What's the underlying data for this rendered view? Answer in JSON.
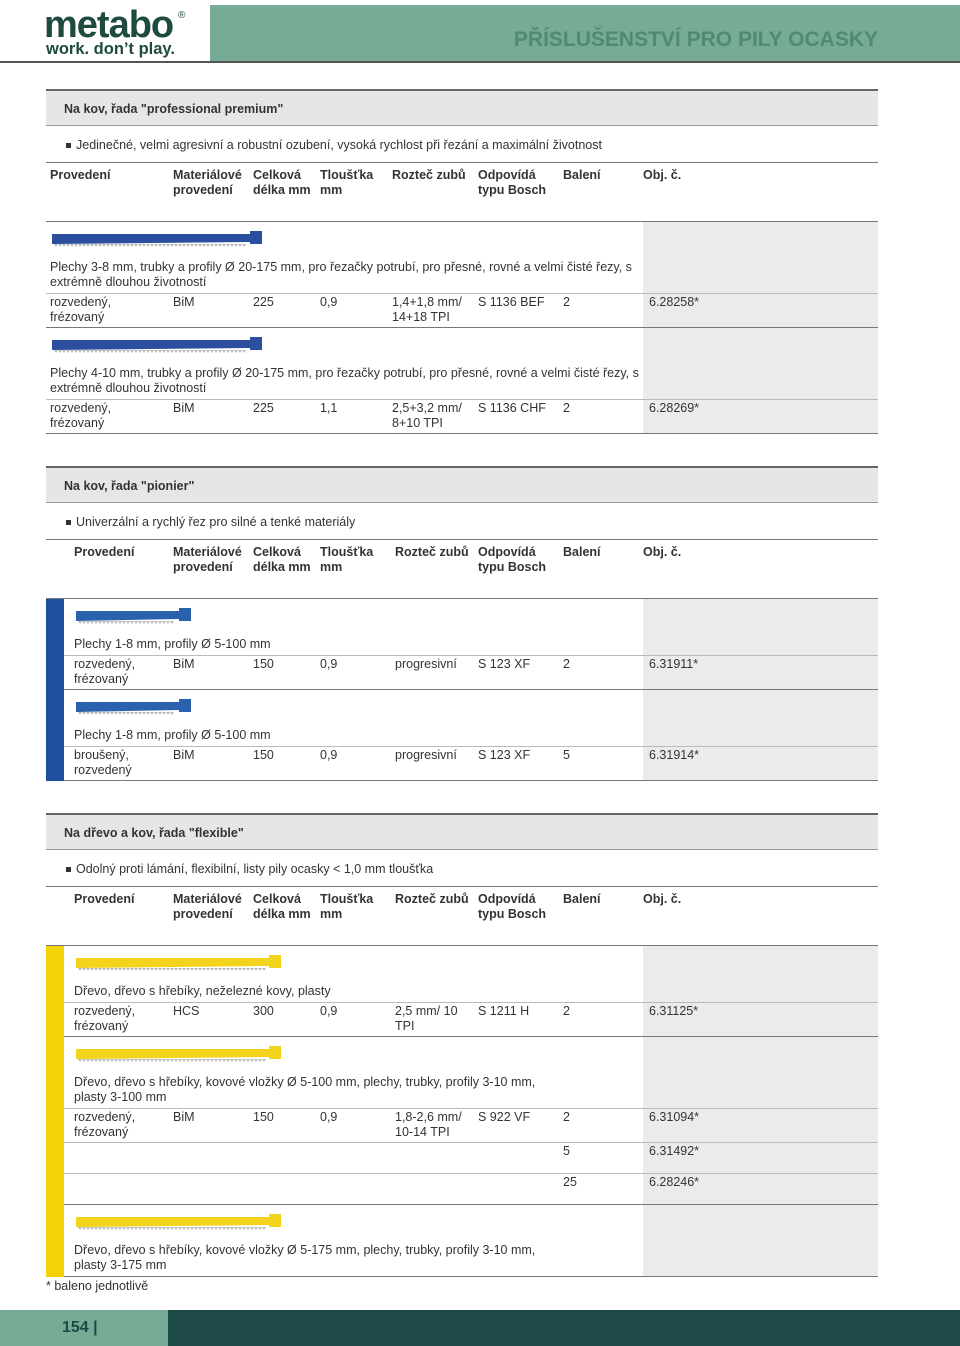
{
  "header": {
    "logo": "metabo",
    "mark": "®",
    "slogan": "work. don’t play.",
    "title": "PŘÍSLUŠENSTVÍ PRO PILY OCASKY"
  },
  "sections": [
    {
      "title": "Na kov, řada \"professional premium\"",
      "feature": "Jedinečné, velmi agresivní a robustní ozubení, vysoká rychlost při řezání a maximální životnost",
      "accent": null,
      "columns": [
        "Provedení",
        "Materiálové provedení",
        "Celková délka mm",
        "Tloušťka mm",
        "Rozteč zubů",
        "Odpovídá typu Bosch",
        "Balení",
        "Obj. č."
      ],
      "products": [
        {
          "blade_color": "#2b4f9e",
          "description": "Plechy 3-8 mm, trubky a profily Ø 20-175 mm, pro řezačky potrubí, pro přesné, rovné a velmi čisté řezy, s extrémně dlouhou životností",
          "rows": [
            {
              "provedeni": "rozvedený, frézovaný",
              "material": "BiM",
              "delka": "225",
              "tloustka": "0,9",
              "roztec": "1,4+1,8 mm/ 14+18 TPI",
              "bosch": "S 1136 BEF",
              "baleni": "2",
              "obj": "6.28258*"
            }
          ]
        },
        {
          "blade_color": "#2b4f9e",
          "description": "Plechy 4-10 mm, trubky a profily Ø 20-175 mm, pro řezačky potrubí, pro přesné, rovné a velmi čisté řezy, s extrémně dlouhou životností",
          "rows": [
            {
              "provedeni": "rozvedený, frézovaný",
              "material": "BiM",
              "delka": "225",
              "tloustka": "1,1",
              "roztec": "2,5+3,2 mm/ 8+10 TPI",
              "bosch": "S 1136 CHF",
              "baleni": "2",
              "obj": "6.28269*"
            }
          ]
        }
      ]
    },
    {
      "title": "Na kov, řada \"pionier\"",
      "feature": "Univerzální a rychlý řez pro silné a tenké materiály",
      "accent": "#1f4f9f",
      "columns": [
        "Provedení",
        "Materiálové provedení",
        "Celková délka mm",
        "Tloušťka mm",
        "Rozteč zubů",
        "Odpovídá typu Bosch",
        "Balení",
        "Obj. č."
      ],
      "products": [
        {
          "blade_color": "#2a62ad",
          "description": "Plechy 1-8 mm, profily Ø 5-100 mm",
          "rows": [
            {
              "provedeni": "rozvedený, frézovaný",
              "material": "BiM",
              "delka": "150",
              "tloustka": "0,9",
              "roztec": "progresivní",
              "bosch": "S 123 XF",
              "baleni": "2",
              "obj": "6.31911*"
            }
          ]
        },
        {
          "blade_color": "#2a62ad",
          "description": "Plechy 1-8 mm, profily Ø 5-100 mm",
          "rows": [
            {
              "provedeni": "broušený, rozvedený",
              "material": "BiM",
              "delka": "150",
              "tloustka": "0,9",
              "roztec": "progresivní",
              "bosch": "S 123 XF",
              "baleni": "5",
              "obj": "6.31914*"
            }
          ]
        }
      ]
    },
    {
      "title": "Na dřevo a kov, řada \"flexible\"",
      "feature": "Odolný proti lámání, flexibilní, listy pily ocasky < 1,0 mm tloušťka",
      "accent": "#f4d20a",
      "columns": [
        "Provedení",
        "Materiálové provedení",
        "Celková délka mm",
        "Tloušťka mm",
        "Rozteč zubů",
        "Odpovídá typu Bosch",
        "Balení",
        "Obj. č."
      ],
      "products": [
        {
          "blade_color": "#f3d31c",
          "description": "Dřevo, dřevo s hřebíky, neželezné kovy, plasty",
          "rows": [
            {
              "provedeni": "rozvedený, frézovaný",
              "material": "HCS",
              "delka": "300",
              "tloustka": "0,9",
              "roztec": "2,5 mm/ 10 TPI",
              "bosch": "S 1211 H",
              "baleni": "2",
              "obj": "6.31125*"
            }
          ]
        },
        {
          "blade_color": "#f3d31c",
          "description": "Dřevo, dřevo s hřebíky, kovové vložky Ø 5-100 mm, plechy, trubky, profily 3-10 mm, plasty 3-100 mm",
          "rows": [
            {
              "provedeni": "rozvedený, frézovaný",
              "material": "BiM",
              "delka": "150",
              "tloustka": "0,9",
              "roztec": "1,8-2,6 mm/ 10-14 TPI",
              "bosch": "S 922 VF",
              "baleni": "2",
              "obj": "6.31094*"
            },
            {
              "baleni": "5",
              "obj": "6.31492*"
            },
            {
              "baleni": "25",
              "obj": "6.28246*"
            }
          ]
        },
        {
          "blade_color": "#f3d31c",
          "description": "Dřevo, dřevo s hřebíky, kovové vložky Ø 5-175 mm, plechy, trubky, profily 3-10 mm, plasty 3-175 mm",
          "rows": []
        }
      ]
    }
  ],
  "footnote": "* baleno jednotlivě",
  "page_number": "154"
}
